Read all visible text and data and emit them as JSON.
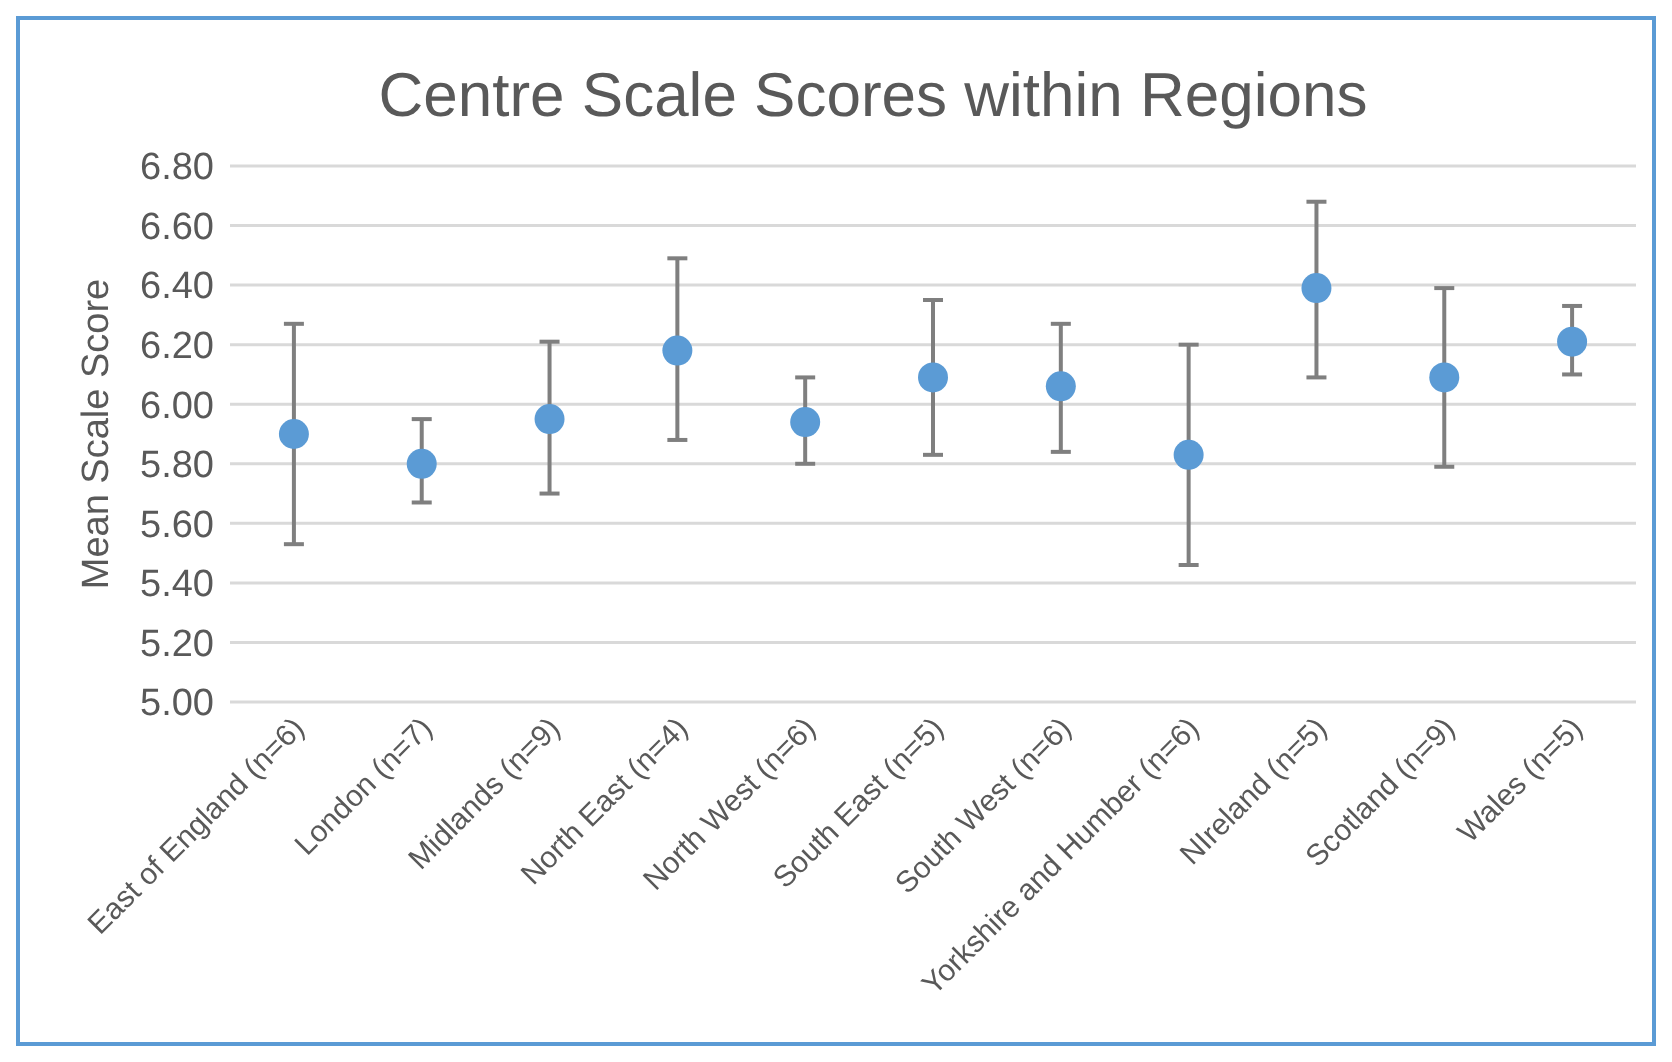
{
  "chart_data": {
    "type": "scatter",
    "title": "Centre Scale Scores within Regions",
    "ylabel": "Mean Scale Score",
    "categories": [
      "East of England (n=6)",
      "London (n=7)",
      "Midlands (n=9)",
      "North East (n=4)",
      "North West (n=6)",
      "South East (n=5)",
      "South West (n=6)",
      "Yorkshire and Humber (n=6)",
      "NIreland (n=5)",
      "Scotland (n=9)",
      "Wales (n=5)"
    ],
    "values": [
      5.9,
      5.8,
      5.95,
      6.18,
      5.94,
      6.09,
      6.06,
      5.83,
      6.39,
      6.09,
      6.21
    ],
    "errors": [
      [
        5.53,
        6.27
      ],
      [
        5.67,
        5.95
      ],
      [
        5.7,
        6.21
      ],
      [
        5.88,
        6.49
      ],
      [
        5.8,
        6.09
      ],
      [
        5.83,
        6.35
      ],
      [
        5.84,
        6.27
      ],
      [
        5.46,
        6.2
      ],
      [
        6.09,
        6.68
      ],
      [
        5.79,
        6.39
      ],
      [
        6.1,
        6.33
      ]
    ],
    "color": "#5b9bd5",
    "marker": "circle",
    "grid": "y",
    "ylim": [
      5,
      6.8
    ],
    "yticks": [
      {
        "value": 5,
        "label": "5.00"
      },
      {
        "value": 5.2,
        "label": "5.20"
      },
      {
        "value": 5.4,
        "label": "5.40"
      },
      {
        "value": 5.6,
        "label": "5.60"
      },
      {
        "value": 5.8,
        "label": "5.80"
      },
      {
        "value": 6,
        "label": "6.00"
      },
      {
        "value": 6.2,
        "label": "6.20"
      },
      {
        "value": 6.4,
        "label": "6.40"
      },
      {
        "value": 6.6,
        "label": "6.60"
      },
      {
        "value": 6.8,
        "label": "6.80"
      }
    ]
  }
}
